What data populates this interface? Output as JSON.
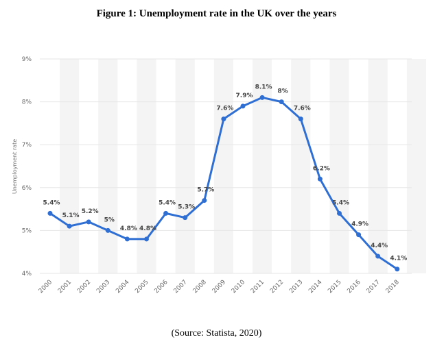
{
  "figure": {
    "title": "Figure 1: Unemployment rate in the UK over the years",
    "source": "(Source: Statista, 2020)"
  },
  "chart_data": {
    "type": "line",
    "title": "Figure 1: Unemployment rate in the UK over the years",
    "xlabel": "",
    "ylabel": "Unemployment rate",
    "x": [
      "2000",
      "2001",
      "2002",
      "2003",
      "2004",
      "2005",
      "2006",
      "2007",
      "2008",
      "2009",
      "2010",
      "2011",
      "2012",
      "2013",
      "2014",
      "2015",
      "2016",
      "2017",
      "2018"
    ],
    "series": [
      {
        "values": [
          5.4,
          5.1,
          5.2,
          5.0,
          4.8,
          4.8,
          5.4,
          5.3,
          5.7,
          7.6,
          7.9,
          8.1,
          8.0,
          7.6,
          6.2,
          5.4,
          4.9,
          4.4,
          4.1
        ],
        "labels": [
          "5.4%",
          "5.1%",
          "5.2%",
          "5%",
          "4.8%",
          "4.8%",
          "5.4%",
          "5.3%",
          "5.7%",
          "7.6%",
          "7.9%",
          "8.1%",
          "8%",
          "7.6%",
          "6.2%",
          "5.4%",
          "4.9%",
          "4.4%",
          "4.1%"
        ],
        "color": "#2f6fd4"
      }
    ],
    "yticks": [
      "4%",
      "5%",
      "6%",
      "7%",
      "8%",
      "9%"
    ],
    "ylim": [
      4,
      9
    ],
    "grid": true,
    "colors": {
      "line": "#2f6fd4",
      "band": "#f4f4f4",
      "grid": "#e6e6e6"
    }
  }
}
